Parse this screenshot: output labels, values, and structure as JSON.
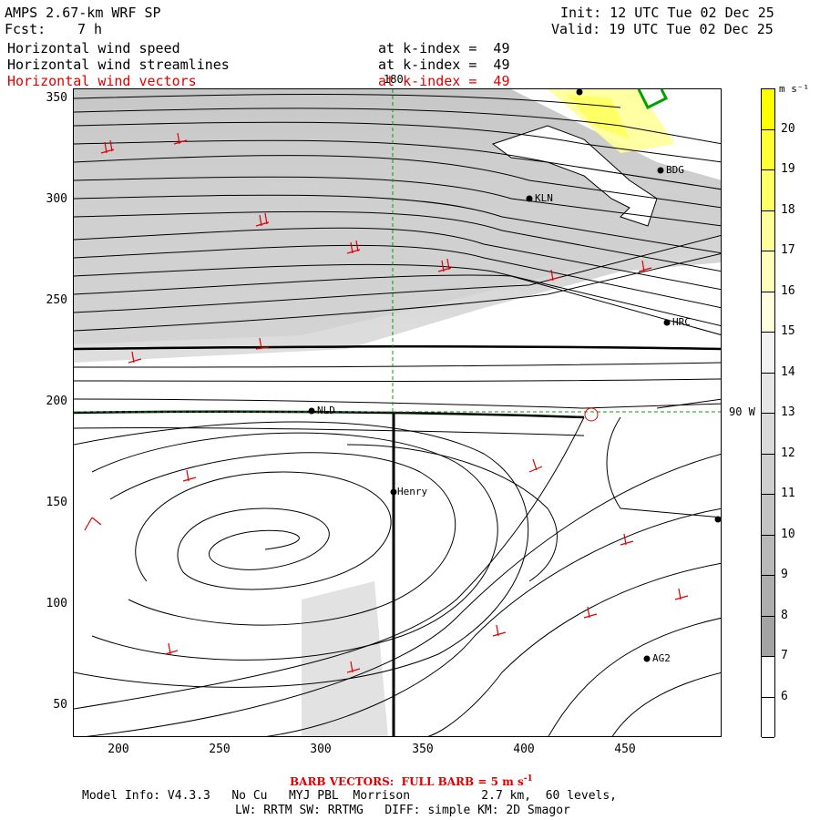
{
  "header": {
    "model_title": "AMPS 2.67-km WRF SP",
    "fcst_label": "Fcst:",
    "fcst_value": "7 h",
    "init_line": "Init: 12 UTC Tue 02 Dec 25",
    "valid_line": "Valid: 19 UTC Tue 02 Dec 25",
    "fields": [
      {
        "name": "Horizontal wind speed",
        "level": "at k-index =  49",
        "color": "#000000"
      },
      {
        "name": "Horizontal wind streamlines",
        "level": "at k-index =  49",
        "color": "#000000"
      },
      {
        "name": "Horizontal wind vectors",
        "level": "at k-index =  49",
        "color": "#e00000"
      }
    ]
  },
  "map": {
    "x_ticks": [
      "200",
      "250",
      "300",
      "350",
      "400",
      "450"
    ],
    "y_ticks": [
      "350",
      "300",
      "250",
      "200",
      "150",
      "100",
      "50"
    ],
    "meridian_label": "180",
    "parallel_label": "90 W",
    "stations": [
      "KLN",
      "BDG",
      "HRC",
      "NLD",
      "Henry",
      "AG2"
    ]
  },
  "colorbar": {
    "unit": "m s⁻¹",
    "labels": [
      "20",
      "19",
      "18",
      "17",
      "16",
      "15",
      "14",
      "13",
      "12",
      "11",
      "10",
      "9",
      "8",
      "7",
      "6"
    ],
    "colors": [
      "#ffff00",
      "#ffff33",
      "#ffff66",
      "#ffff99",
      "#ffffbb",
      "#ffffdd",
      "#f2f2f2",
      "#e6e6e6",
      "#dadada",
      "#cfcfcf",
      "#c4c4c4",
      "#b9b9b9",
      "#aeaeae",
      "#a3a3a3",
      "#ffffff",
      "#ffffff"
    ]
  },
  "footer": {
    "barb_text": "BARB VECTORS:  FULL BARB = 5 m s",
    "barb_sup": "-1",
    "model_info": "Model Info: V4.3.3   No Cu   MYJ PBL  Morrison          2.7 km,  60 levels,",
    "physics": "LW: RRTM SW: RRTMG   DIFF: simple KM: 2D Smagor"
  }
}
